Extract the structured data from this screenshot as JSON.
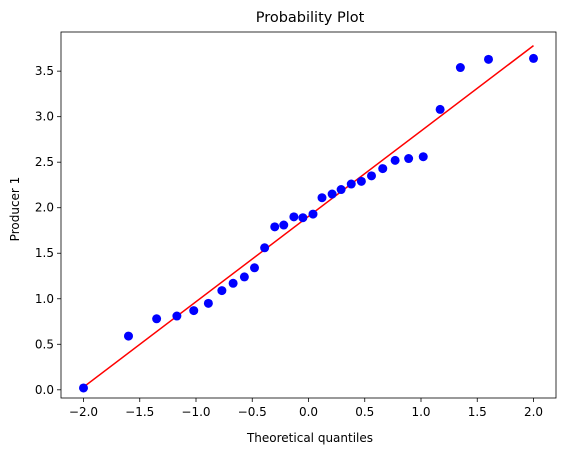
{
  "chart_data": {
    "type": "scatter",
    "title": "Probability Plot",
    "xlabel": "Theoretical quantiles",
    "ylabel": "Producer 1",
    "xlim": [
      -2.2,
      2.2
    ],
    "ylim": [
      -0.09,
      3.93
    ],
    "x_ticks": [
      -2.0,
      -1.5,
      -1.0,
      -0.5,
      0.0,
      0.5,
      1.0,
      1.5,
      2.0
    ],
    "x_tick_labels": [
      "−2.0",
      "−1.5",
      "−1.0",
      "−0.5",
      "0.0",
      "0.5",
      "1.0",
      "1.5",
      "2.0"
    ],
    "y_ticks": [
      0.0,
      0.5,
      1.0,
      1.5,
      2.0,
      2.5,
      3.0,
      3.5
    ],
    "y_tick_labels": [
      "0.0",
      "0.5",
      "1.0",
      "1.5",
      "2.0",
      "2.5",
      "3.0",
      "3.5"
    ],
    "grid": false,
    "points": [
      {
        "x": -2.0,
        "y": 0.02
      },
      {
        "x": -1.6,
        "y": 0.59
      },
      {
        "x": -1.35,
        "y": 0.78
      },
      {
        "x": -1.17,
        "y": 0.81
      },
      {
        "x": -1.02,
        "y": 0.87
      },
      {
        "x": -0.89,
        "y": 0.95
      },
      {
        "x": -0.77,
        "y": 1.09
      },
      {
        "x": -0.67,
        "y": 1.17
      },
      {
        "x": -0.57,
        "y": 1.24
      },
      {
        "x": -0.48,
        "y": 1.34
      },
      {
        "x": -0.39,
        "y": 1.56
      },
      {
        "x": -0.3,
        "y": 1.79
      },
      {
        "x": -0.22,
        "y": 1.81
      },
      {
        "x": -0.13,
        "y": 1.9
      },
      {
        "x": -0.05,
        "y": 1.89
      },
      {
        "x": 0.04,
        "y": 1.93
      },
      {
        "x": 0.12,
        "y": 2.11
      },
      {
        "x": 0.21,
        "y": 2.15
      },
      {
        "x": 0.29,
        "y": 2.2
      },
      {
        "x": 0.38,
        "y": 2.26
      },
      {
        "x": 0.47,
        "y": 2.29
      },
      {
        "x": 0.56,
        "y": 2.35
      },
      {
        "x": 0.66,
        "y": 2.43
      },
      {
        "x": 0.77,
        "y": 2.52
      },
      {
        "x": 0.89,
        "y": 2.54
      },
      {
        "x": 1.02,
        "y": 2.56
      },
      {
        "x": 1.17,
        "y": 3.08
      },
      {
        "x": 1.35,
        "y": 3.54
      },
      {
        "x": 1.6,
        "y": 3.63
      },
      {
        "x": 2.0,
        "y": 3.64
      }
    ],
    "fit_line": {
      "x": [
        -2.0,
        2.0
      ],
      "y": [
        0.03,
        3.78
      ]
    },
    "colors": {
      "points": "#0000ff",
      "fit_line": "#ff0000"
    }
  }
}
